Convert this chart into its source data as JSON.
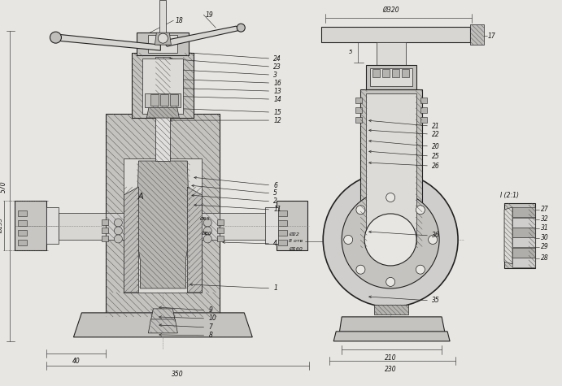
{
  "bg": "#e8e6e2",
  "lc": "#222222",
  "mc": "#888888",
  "hc": "#555555",
  "tc": "#111111",
  "fig_w": 6.91,
  "fig_h": 4.75,
  "dpi": 100,
  "left_leaders": [
    [
      "24",
      335,
      72,
      205,
      63
    ],
    [
      "23",
      335,
      82,
      205,
      72
    ],
    [
      "3",
      335,
      92,
      205,
      85
    ],
    [
      "16",
      335,
      102,
      205,
      97
    ],
    [
      "13",
      335,
      112,
      205,
      108
    ],
    [
      "14",
      335,
      122,
      205,
      118
    ],
    [
      "15",
      335,
      138,
      205,
      133
    ],
    [
      "12",
      335,
      148,
      205,
      148
    ],
    [
      "6",
      335,
      228,
      235,
      218
    ],
    [
      "5",
      335,
      238,
      232,
      228
    ],
    [
      "2",
      335,
      248,
      232,
      240
    ],
    [
      "11",
      335,
      258,
      235,
      252
    ],
    [
      "4",
      335,
      300,
      270,
      298
    ],
    [
      "1",
      335,
      355,
      230,
      350
    ],
    [
      "9",
      255,
      382,
      192,
      378
    ],
    [
      "10",
      255,
      392,
      192,
      390
    ],
    [
      "7",
      255,
      403,
      192,
      400
    ],
    [
      "8",
      255,
      413,
      192,
      412
    ]
  ],
  "right_leaders": [
    [
      "21",
      530,
      155,
      450,
      148
    ],
    [
      "22",
      530,
      165,
      450,
      160
    ],
    [
      "20",
      530,
      180,
      450,
      173
    ],
    [
      "25",
      530,
      192,
      450,
      186
    ],
    [
      "26",
      530,
      204,
      450,
      200
    ],
    [
      "36",
      530,
      290,
      450,
      285
    ],
    [
      "35",
      530,
      370,
      450,
      365
    ]
  ],
  "detail_labels": [
    [
      "27",
      665,
      258
    ],
    [
      "32",
      665,
      270
    ],
    [
      "31",
      665,
      281
    ],
    [
      "30",
      665,
      293
    ],
    [
      "29",
      665,
      304
    ],
    [
      "28",
      665,
      318
    ]
  ]
}
